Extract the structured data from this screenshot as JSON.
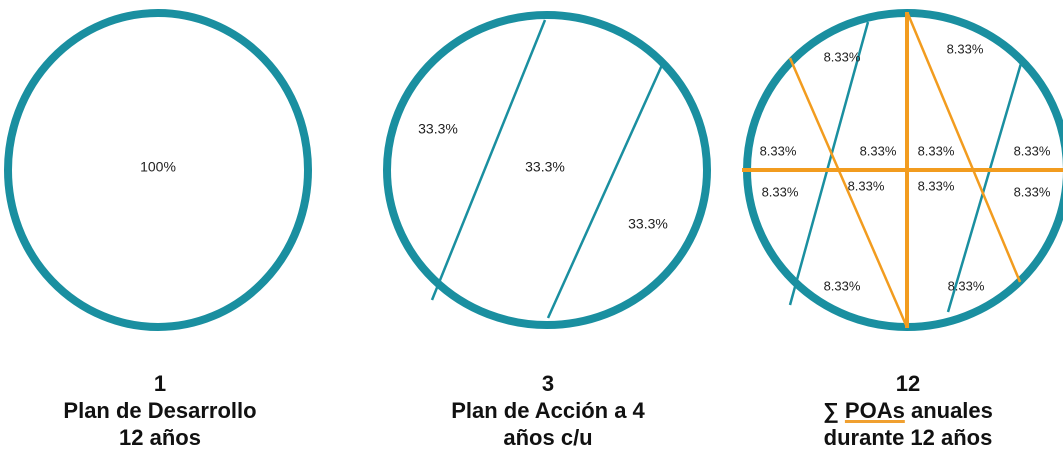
{
  "panels": [
    {
      "number": "1",
      "caption": [
        "Plan de Desarrollo",
        "12 años"
      ],
      "regions": [
        "100%"
      ]
    },
    {
      "number": "3",
      "caption": [
        "Plan de Acción a 4",
        "años c/u"
      ],
      "regions": [
        "33.3%",
        "33.3%",
        "33.3%"
      ]
    },
    {
      "number": "12",
      "caption_line1": {
        "symbol": "∑",
        "underlined": "POAs",
        "rest": "anuales"
      },
      "caption": [
        "durante 12 años"
      ],
      "regions": [
        "8.33%",
        "8.33%",
        "8.33%",
        "8.33%",
        "8.33%",
        "8.33%",
        "8.33%",
        "8.33%",
        "8.33%",
        "8.33%",
        "8.33%",
        "8.33%"
      ]
    }
  ]
}
